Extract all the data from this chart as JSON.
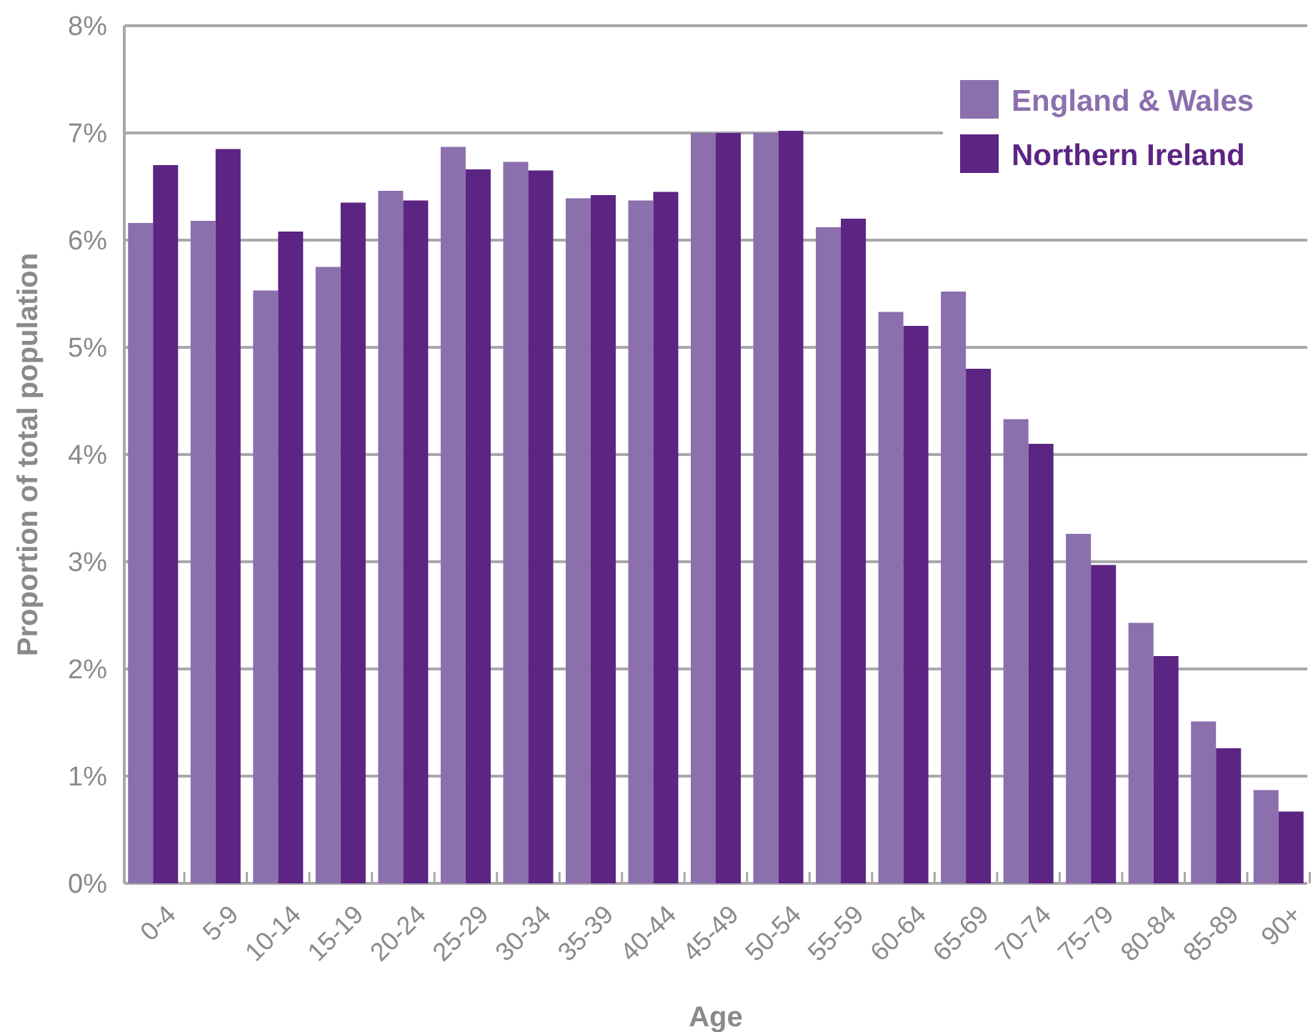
{
  "chart_data": {
    "type": "bar",
    "xlabel": "Age",
    "ylabel": "Proportion of total population",
    "categories": [
      "0-4",
      "5-9",
      "10-14",
      "15-19",
      "20-24",
      "25-29",
      "30-34",
      "35-39",
      "40-44",
      "45-49",
      "50-54",
      "55-59",
      "60-64",
      "65-69",
      "70-74",
      "75-79",
      "80-84",
      "85-89",
      "90+"
    ],
    "series": [
      {
        "name": "England & Wales",
        "color": "#8c6fad",
        "values": [
          6.16,
          6.18,
          5.53,
          5.75,
          6.46,
          6.87,
          6.73,
          6.39,
          6.37,
          7.0,
          7.0,
          6.12,
          5.33,
          5.52,
          4.33,
          3.26,
          2.43,
          1.51,
          0.87
        ]
      },
      {
        "name": "Northern Ireland",
        "color": "#5c2483",
        "values": [
          6.7,
          6.85,
          6.08,
          6.35,
          6.37,
          6.66,
          6.65,
          6.42,
          6.45,
          7.0,
          7.02,
          6.2,
          5.2,
          4.8,
          4.1,
          2.97,
          2.12,
          1.26,
          0.67
        ]
      }
    ],
    "ylim": [
      0,
      8
    ],
    "yticks": [
      {
        "value": 0,
        "label": "0%"
      },
      {
        "value": 1,
        "label": "1%"
      },
      {
        "value": 2,
        "label": "2%"
      },
      {
        "value": 3,
        "label": "3%"
      },
      {
        "value": 4,
        "label": "4%"
      },
      {
        "value": 5,
        "label": "5%"
      },
      {
        "value": 6,
        "label": "6%"
      },
      {
        "value": 7,
        "label": "7%"
      },
      {
        "value": 8,
        "label": "8%"
      }
    ],
    "grid": "y",
    "legend": "top right"
  }
}
